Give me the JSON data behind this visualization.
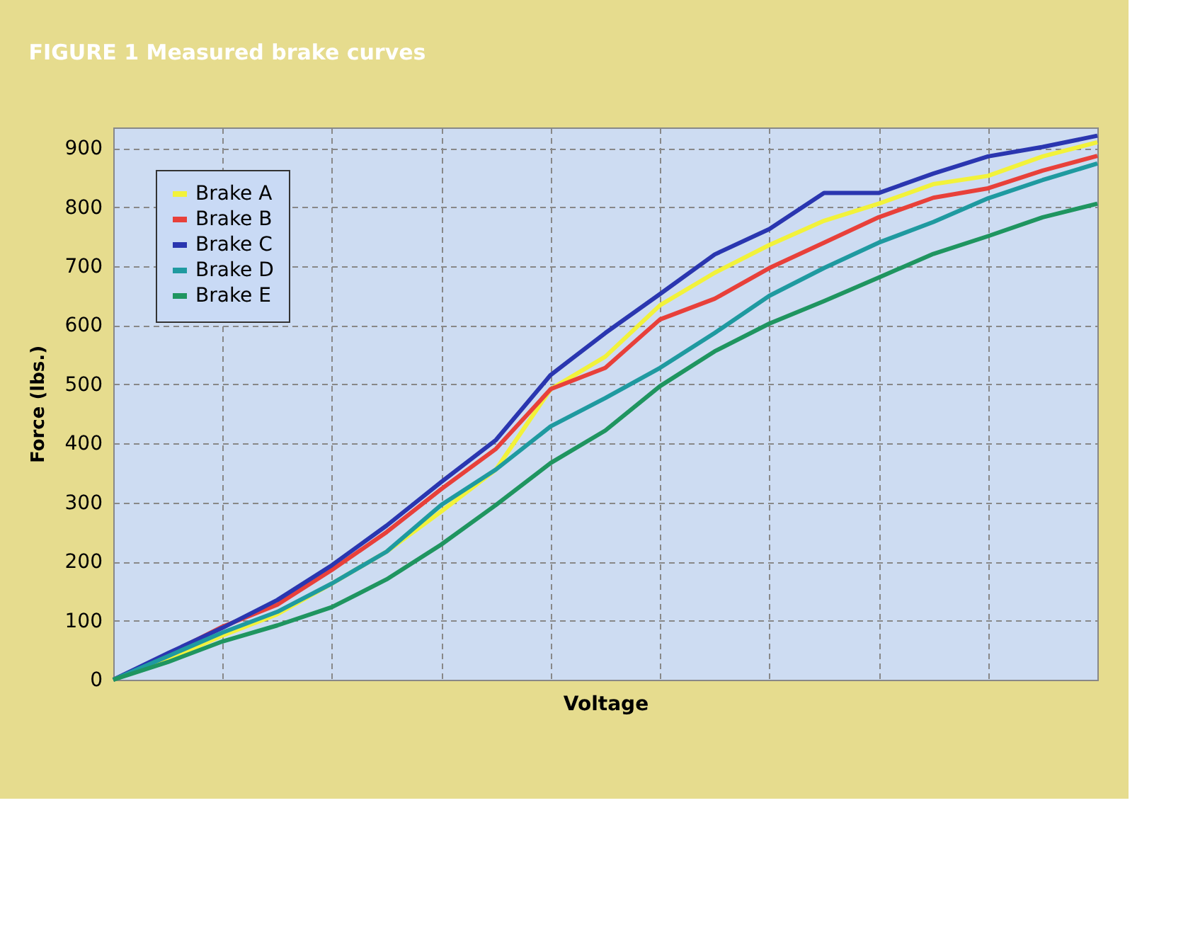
{
  "chart_data": {
    "type": "line",
    "title": "FIGURE 1  Measured brake curves",
    "xlabel": "Voltage",
    "ylabel": "Force (lbs.)",
    "categories": [
      null,
      null,
      null,
      null,
      null,
      null,
      null,
      null,
      null,
      null,
      null,
      null,
      null,
      null,
      null,
      null,
      null,
      null,
      null
    ],
    "series": [
      {
        "name": "Brake A",
        "color": "#f2f23a",
        "values": [
          0,
          35,
          75,
          111,
          163,
          217,
          285,
          356,
          492,
          547,
          634,
          689,
          736,
          777,
          806,
          839,
          853,
          886,
          910
        ]
      },
      {
        "name": "Brake B",
        "color": "#e8403a",
        "values": [
          0,
          43,
          90,
          127,
          186,
          250,
          323,
          391,
          492,
          528,
          610,
          645,
          697,
          740,
          783,
          816,
          832,
          862,
          887
        ]
      },
      {
        "name": "Brake C",
        "color": "#2a36b0",
        "values": [
          0,
          45,
          88,
          135,
          194,
          261,
          335,
          406,
          516,
          587,
          653,
          720,
          763,
          824,
          824,
          857,
          886,
          902,
          921
        ]
      },
      {
        "name": "Brake D",
        "color": "#1f9aa0",
        "values": [
          0,
          40,
          80,
          115,
          163,
          217,
          296,
          356,
          429,
          477,
          528,
          587,
          650,
          697,
          740,
          775,
          815,
          846,
          874
        ]
      },
      {
        "name": "Brake E",
        "color": "#1f9560",
        "values": [
          0,
          30,
          65,
          92,
          123,
          170,
          229,
          296,
          367,
          422,
          497,
          556,
          603,
          641,
          681,
          721,
          751,
          783,
          806
        ]
      }
    ],
    "ylim": [
      0,
      935
    ],
    "yticks": [
      0,
      100,
      200,
      300,
      400,
      500,
      600,
      700,
      800,
      900
    ],
    "grid": true,
    "legend": "top left",
    "marker": "none",
    "line_style": "solid"
  }
}
